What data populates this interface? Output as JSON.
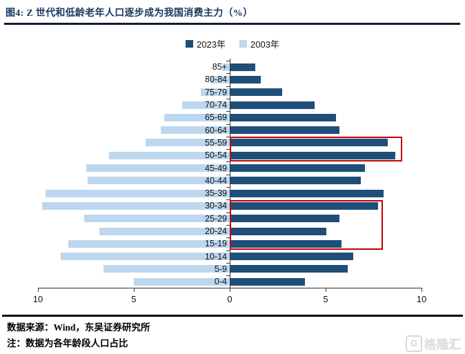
{
  "header": {
    "title": "图4:  Z 世代和低龄老年人口逐步成为我国消费主力（%）"
  },
  "legend": [
    {
      "label": "2023年",
      "color": "#1F4E79"
    },
    {
      "label": "2003年",
      "color": "#BDD7EE"
    }
  ],
  "chart_data": {
    "type": "bar",
    "subtype": "population-pyramid",
    "title": "图4: Z世代和低龄老年人口逐步成为我国消费主力（%）",
    "categories": [
      "85+",
      "80-84",
      "75-79",
      "70-74",
      "65-69",
      "60-64",
      "55-59",
      "50-54",
      "45-49",
      "40-44",
      "35-39",
      "30-34",
      "25-29",
      "20-24",
      "15-19",
      "10-14",
      "5-9",
      "0-4"
    ],
    "series": [
      {
        "name": "2023年",
        "side": "right",
        "color": "#1F4E79",
        "values": [
          1.3,
          1.6,
          2.7,
          4.4,
          5.5,
          5.7,
          8.2,
          8.6,
          7.0,
          6.8,
          8.0,
          7.7,
          5.7,
          5.0,
          5.8,
          6.4,
          6.1,
          3.9
        ]
      },
      {
        "name": "2003年",
        "side": "left",
        "color": "#BDD7EE",
        "values": [
          0.4,
          1.0,
          1.5,
          2.5,
          3.4,
          3.6,
          4.4,
          6.3,
          7.5,
          7.4,
          9.6,
          9.8,
          7.6,
          6.8,
          8.4,
          8.8,
          6.6,
          5.0
        ]
      }
    ],
    "x_axis": {
      "tick_values": [
        -10,
        -5,
        0,
        5,
        10
      ],
      "tick_labels": [
        "10",
        "5",
        "0",
        "5",
        "10"
      ],
      "max": 10
    },
    "grid": false,
    "legend_position": "top-center",
    "highlights": [
      {
        "rows": [
          "55-59",
          "50-54"
        ],
        "extent": 9.0,
        "color": "#C00000"
      },
      {
        "rows": [
          "30-34",
          "25-29",
          "20-24",
          "15-19"
        ],
        "extent": 8.0,
        "color": "#C00000"
      }
    ]
  },
  "footer": {
    "source": "数据来源：Wind，东吴证券研究所",
    "note": "注：数据为各年龄段人口占比"
  },
  "watermark": {
    "icon": "G",
    "text": "格隆汇"
  }
}
